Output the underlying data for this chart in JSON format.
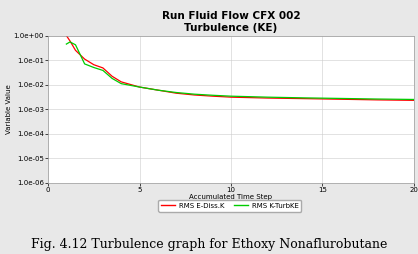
{
  "title_line1": "Run Fluid Flow CFX 002",
  "title_line2": "Turbulence (KE)",
  "xlabel": "Accumulated Time Step",
  "ylabel": "Variable Value",
  "xlim": [
    0,
    20
  ],
  "ylim_log_min": -6,
  "ylim_log_max": 0,
  "caption": "Fig. 4.12 Turbulence graph for Ethoxy Nonaflurobutane",
  "legend_labels": [
    "RMS E-Diss.K",
    "RMS K-TurbKE"
  ],
  "line_colors": [
    "#ff0000",
    "#00cc00"
  ],
  "bg_color": "#e8e8e8",
  "plot_bg_color": "#ffffff",
  "grid_color": "#cccccc",
  "title_fontsize": 7.5,
  "axis_label_fontsize": 5,
  "tick_fontsize": 5,
  "caption_fontsize": 9,
  "legend_fontsize": 5,
  "ytick_labels": [
    "1.0e-06",
    "1.0e-05",
    "1.0e-04",
    "1.0e-03",
    "1.0e-02",
    "1.0e-01",
    "1.0e+00"
  ],
  "xtick_labels": [
    "0",
    "5",
    "10",
    "15",
    "20"
  ],
  "xtick_vals": [
    0,
    5,
    10,
    15,
    20
  ],
  "red_x": [
    1,
    1.2,
    1.5,
    2,
    2.5,
    3,
    3.5,
    4,
    5,
    6,
    7,
    8,
    9,
    10,
    12,
    14,
    16,
    18,
    20
  ],
  "red_y": [
    1.0,
    0.6,
    0.25,
    0.11,
    0.065,
    0.048,
    0.022,
    0.013,
    0.008,
    0.006,
    0.0045,
    0.0038,
    0.0034,
    0.0031,
    0.00285,
    0.0027,
    0.00255,
    0.0024,
    0.0023
  ],
  "green_x": [
    1,
    1.2,
    1.5,
    2,
    2.5,
    3,
    3.5,
    4,
    5,
    6,
    7,
    8,
    9,
    10,
    12,
    14,
    16,
    18,
    20
  ],
  "green_y": [
    0.45,
    0.55,
    0.42,
    0.07,
    0.05,
    0.038,
    0.018,
    0.011,
    0.008,
    0.006,
    0.0048,
    0.0041,
    0.0037,
    0.0034,
    0.0031,
    0.0029,
    0.00275,
    0.0026,
    0.0025
  ]
}
